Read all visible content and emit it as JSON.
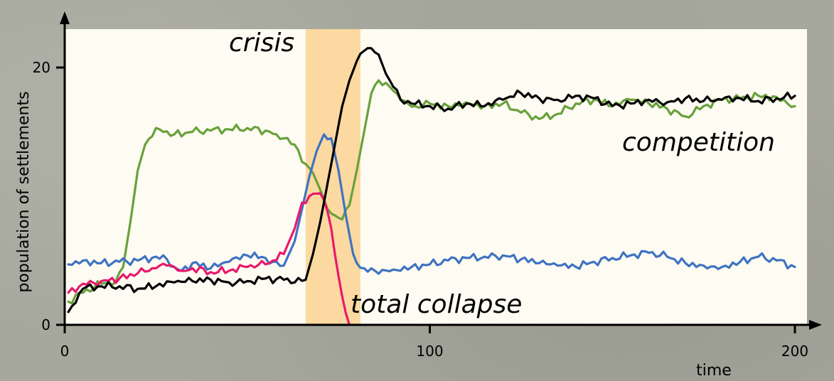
{
  "chart_data": {
    "type": "line",
    "xlabel": "time",
    "ylabel": "population of settlements",
    "xlim": [
      0,
      200
    ],
    "ylim": [
      0,
      23
    ],
    "x_ticks": [
      0,
      100,
      200
    ],
    "y_ticks": [
      0,
      20
    ],
    "grid": false,
    "background": "#fefbf2",
    "crisis_band": {
      "label": "crisis",
      "x_start": 66,
      "x_end": 81,
      "color": "#fbd9a0"
    },
    "annotations": [
      {
        "text": "crisis",
        "x": 54,
        "y": 21.5
      },
      {
        "text": "competition",
        "x": 153,
        "y": 14
      },
      {
        "text": "total collapse",
        "x": 78.5,
        "y": 1.2
      }
    ],
    "series": [
      {
        "color": "#68a13a",
        "x": [
          1,
          5,
          10,
          14,
          16,
          18,
          20,
          22,
          25,
          27,
          30,
          35,
          40,
          45,
          50,
          55,
          58,
          60,
          63,
          66,
          68,
          70,
          72,
          74,
          76,
          78,
          80,
          82,
          84,
          86,
          88,
          90,
          92,
          94,
          96,
          98,
          100,
          105,
          110,
          115,
          120,
          125,
          130,
          135,
          140,
          145,
          150,
          155,
          160,
          165,
          170,
          175,
          180,
          185,
          190,
          195,
          200
        ],
        "y": [
          1.8,
          2.5,
          3.2,
          3.4,
          4.5,
          8,
          12,
          14,
          15.3,
          15,
          14.8,
          15,
          15.1,
          15.2,
          15.3,
          15.1,
          14.8,
          14.5,
          14,
          12.5,
          11.8,
          10.5,
          9,
          8.5,
          8.2,
          9.3,
          12,
          15,
          18,
          19,
          18.8,
          18.2,
          17.5,
          17.2,
          17.0,
          17.0,
          17.2,
          17.0,
          17.3,
          17.0,
          17.2,
          16.5,
          16.0,
          16.4,
          17.2,
          17.5,
          17.0,
          17.5,
          17.2,
          16.8,
          16.2,
          17.0,
          17.5,
          17.6,
          17.8,
          17.7,
          17.0
        ]
      },
      {
        "color": "#3f73c2",
        "x": [
          1,
          5,
          10,
          15,
          20,
          25,
          28,
          30,
          32,
          35,
          40,
          45,
          50,
          55,
          57,
          60,
          63,
          65,
          67,
          69,
          71,
          73,
          75,
          77,
          79,
          80,
          82,
          85,
          90,
          95,
          100,
          105,
          110,
          115,
          120,
          125,
          130,
          135,
          140,
          145,
          150,
          155,
          160,
          165,
          170,
          175,
          180,
          185,
          190,
          195,
          200
        ],
        "y": [
          4.7,
          5.0,
          4.8,
          4.9,
          5.0,
          5.3,
          5.1,
          4.5,
          4.2,
          4.8,
          4.4,
          4.9,
          5.4,
          5.2,
          4.9,
          4.6,
          6.5,
          9,
          11.5,
          13.5,
          14.8,
          14.5,
          12.0,
          8.5,
          5.5,
          4.8,
          4.4,
          4.2,
          4.3,
          4.5,
          4.7,
          5.0,
          5.2,
          5.3,
          5.4,
          5.1,
          4.8,
          4.6,
          4.5,
          4.9,
          5.2,
          5.4,
          5.6,
          5.3,
          4.8,
          4.6,
          4.5,
          4.9,
          5.3,
          5.0,
          4.5
        ]
      },
      {
        "color": "#e8196c",
        "x": [
          1,
          5,
          10,
          15,
          20,
          25,
          28,
          30,
          32,
          35,
          40,
          45,
          50,
          55,
          57,
          60,
          63,
          65,
          67,
          69,
          71,
          72,
          73,
          74,
          75,
          76,
          77,
          78
        ],
        "y": [
          2.5,
          3.2,
          3.4,
          3.6,
          4.0,
          4.4,
          4.6,
          4.5,
          4.2,
          4.4,
          4.1,
          4.2,
          4.5,
          4.7,
          5.0,
          5.5,
          7.5,
          9.5,
          10,
          10.2,
          9.7,
          8.8,
          7.5,
          5.5,
          3.8,
          2.2,
          0.9,
          0.0
        ]
      },
      {
        "color": "#000000",
        "x": [
          1,
          5,
          10,
          15,
          20,
          25,
          30,
          35,
          40,
          45,
          50,
          55,
          60,
          63,
          66,
          68,
          70,
          72,
          74,
          76,
          78,
          80,
          82,
          84,
          86,
          88,
          90,
          92,
          95,
          100,
          105,
          110,
          115,
          120,
          125,
          130,
          135,
          140,
          145,
          150,
          155,
          160,
          165,
          170,
          175,
          180,
          185,
          190,
          195,
          200
        ],
        "y": [
          1.0,
          2.8,
          3.0,
          3.0,
          2.8,
          3.0,
          3.3,
          3.4,
          3.5,
          3.3,
          3.4,
          3.6,
          3.5,
          3.3,
          3.5,
          5.5,
          8,
          11,
          14,
          17,
          19,
          20.5,
          21.3,
          21.5,
          21,
          19.5,
          18.5,
          17.5,
          17.2,
          17.0,
          16.8,
          17.2,
          17.0,
          17.5,
          18.0,
          17.6,
          17.5,
          17.8,
          17.6,
          17.0,
          17.2,
          17.5,
          17.3,
          17.6,
          17.4,
          17.5,
          17.6,
          17.4,
          17.6,
          17.8
        ]
      }
    ]
  }
}
